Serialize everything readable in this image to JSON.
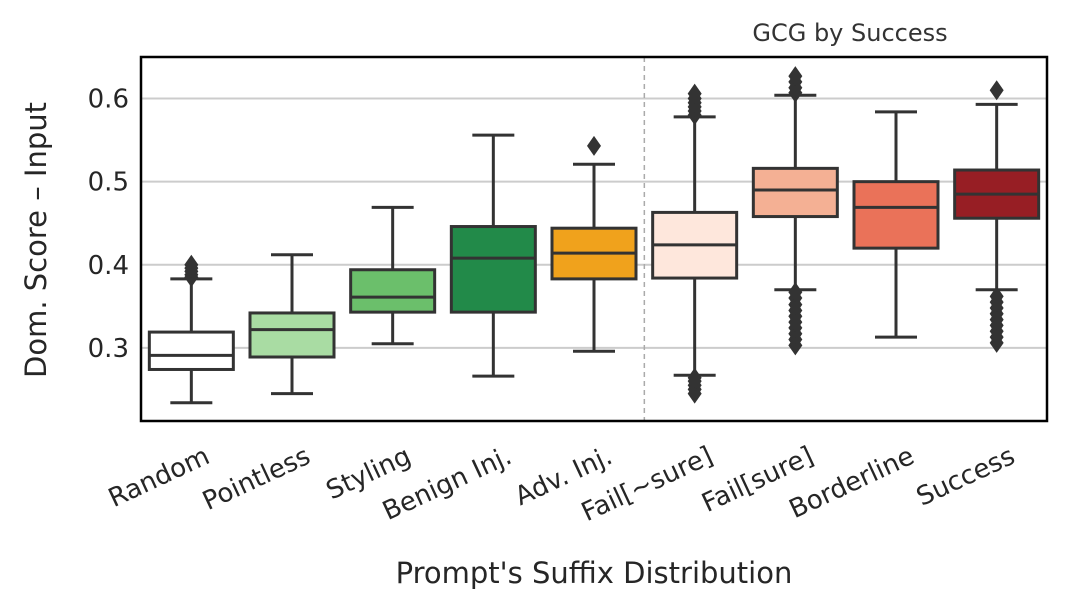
{
  "chart_data": {
    "type": "box",
    "xlabel": "Prompt's Suffix Distribution",
    "ylabel": "Dom. Score – Input",
    "ylim": [
      0.212,
      0.65
    ],
    "yticks": [
      0.3,
      0.4,
      0.5,
      0.6
    ],
    "ytick_labels": [
      "0.3",
      "0.4",
      "0.5",
      "0.6"
    ],
    "grid": "horizontal",
    "annotation": "GCG by Success",
    "categories": [
      "Random",
      "Pointless",
      "Styling",
      "Benign Inj.",
      "Adv. Inj.",
      "Fail[~sure]",
      "Fail[sure]",
      "Borderline",
      "Success"
    ],
    "colors": [
      "#ffffff",
      "#a9dca3",
      "#6bbf6b",
      "#228a49",
      "#f0a21c",
      "#fee7dc",
      "#f4b094",
      "#ea7259",
      "#971e24"
    ],
    "boxes": [
      {
        "name": "Random",
        "whisker_low": 0.234,
        "q1": 0.274,
        "median": 0.291,
        "q3": 0.319,
        "whisker_high": 0.383,
        "outliers": [
          0.385,
          0.388,
          0.392,
          0.396,
          0.4
        ]
      },
      {
        "name": "Pointless",
        "whisker_low": 0.245,
        "q1": 0.289,
        "median": 0.322,
        "q3": 0.342,
        "whisker_high": 0.412,
        "outliers": []
      },
      {
        "name": "Styling",
        "whisker_low": 0.305,
        "q1": 0.343,
        "median": 0.361,
        "q3": 0.394,
        "whisker_high": 0.469,
        "outliers": []
      },
      {
        "name": "Benign Inj.",
        "whisker_low": 0.266,
        "q1": 0.343,
        "median": 0.408,
        "q3": 0.446,
        "whisker_high": 0.556,
        "outliers": []
      },
      {
        "name": "Adv. Inj.",
        "whisker_low": 0.296,
        "q1": 0.383,
        "median": 0.414,
        "q3": 0.444,
        "whisker_high": 0.521,
        "outliers": [
          0.543
        ]
      },
      {
        "name": "Fail[~sure]",
        "whisker_low": 0.267,
        "q1": 0.384,
        "median": 0.424,
        "q3": 0.463,
        "whisker_high": 0.578,
        "outliers": [
          0.245,
          0.25,
          0.255,
          0.26,
          0.264,
          0.58,
          0.585,
          0.59,
          0.595,
          0.6,
          0.606
        ]
      },
      {
        "name": "Fail[sure]",
        "whisker_low": 0.37,
        "q1": 0.458,
        "median": 0.49,
        "q3": 0.516,
        "whisker_high": 0.604,
        "outliers": [
          0.303,
          0.31,
          0.317,
          0.324,
          0.331,
          0.338,
          0.345,
          0.352,
          0.36,
          0.367,
          0.607,
          0.613,
          0.62,
          0.627
        ]
      },
      {
        "name": "Borderline",
        "whisker_low": 0.313,
        "q1": 0.42,
        "median": 0.469,
        "q3": 0.5,
        "whisker_high": 0.584,
        "outliers": []
      },
      {
        "name": "Success",
        "whisker_low": 0.37,
        "q1": 0.456,
        "median": 0.485,
        "q3": 0.514,
        "whisker_high": 0.593,
        "outliers": [
          0.306,
          0.313,
          0.32,
          0.327,
          0.334,
          0.341,
          0.348,
          0.355,
          0.362,
          0.61
        ]
      }
    ]
  }
}
